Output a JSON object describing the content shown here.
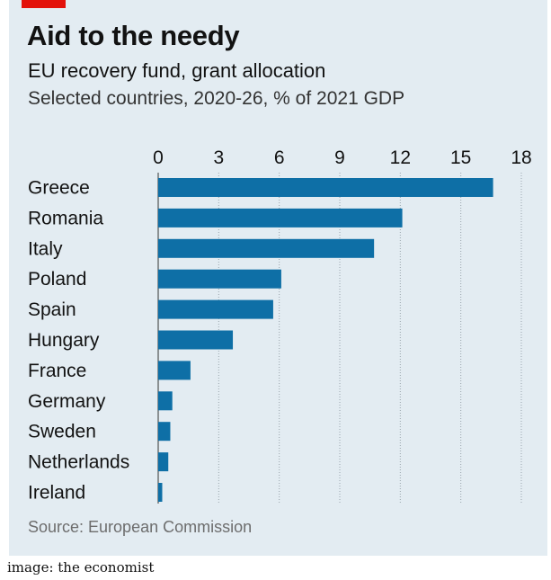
{
  "header": {
    "title": "Aid to the needy",
    "subtitle": "EU recovery fund, grant allocation",
    "subsubtitle": "Selected countries, 2020-26, % of 2021 GDP"
  },
  "footer": {
    "source": "Source: European Commission",
    "credit": "image: the economist"
  },
  "colors": {
    "bar": "#0e6fa6",
    "grid": "#9aa5ad",
    "accent": "#e3120b",
    "background": "#e3ecf2"
  },
  "chart_data": {
    "type": "bar",
    "orientation": "horizontal",
    "title": "Aid to the needy",
    "subtitle": "EU recovery fund, grant allocation",
    "unit": "Selected countries, 2020-26, % of 2021 GDP",
    "categories": [
      "Greece",
      "Romania",
      "Italy",
      "Poland",
      "Spain",
      "Hungary",
      "France",
      "Germany",
      "Sweden",
      "Netherlands",
      "Ireland"
    ],
    "values": [
      16.6,
      12.1,
      10.7,
      6.1,
      5.7,
      3.7,
      1.6,
      0.7,
      0.6,
      0.5,
      0.2
    ],
    "xticks": [
      0,
      3,
      6,
      9,
      12,
      15,
      18
    ],
    "xlim": [
      0,
      18
    ],
    "grid": true,
    "axis_position": "top",
    "source": "Source: European Commission"
  }
}
